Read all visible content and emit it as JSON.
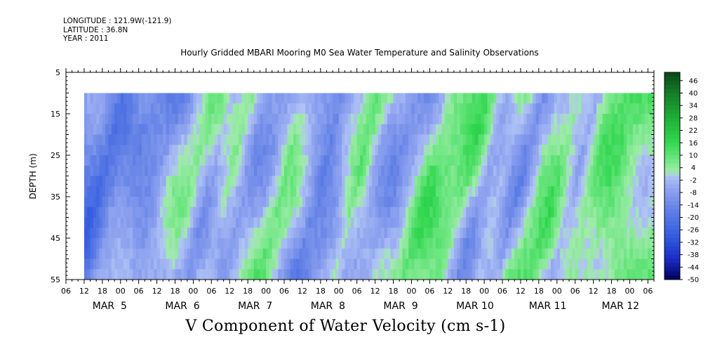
{
  "meta": {
    "longitude": "LONGITUDE : 121.9W(-121.9)",
    "latitude": "LATITUDE : 36.8N",
    "year": "YEAR : 2011"
  },
  "chart_data": {
    "type": "heatmap",
    "title": "Hourly Gridded MBARI Mooring M0 Sea Water Temperature and Salinity Observations",
    "variable_label": "V Component of Water Velocity (cm s-1)",
    "ylabel": "DEPTH (m)",
    "ylim": [
      5,
      55
    ],
    "y_inverted": true,
    "y_ticks": [
      5,
      15,
      25,
      35,
      45,
      55
    ],
    "x_start": "2011-03-04T06:00",
    "x_end": "2011-03-12T08:00",
    "x_hour_ticks": [
      "06",
      "12",
      "18",
      "00",
      "06",
      "12",
      "18",
      "00",
      "06",
      "12",
      "18",
      "00",
      "06",
      "12",
      "18",
      "00",
      "06",
      "12",
      "18",
      "00",
      "06",
      "12",
      "18",
      "00",
      "06",
      "12",
      "18",
      "00",
      "06",
      "12",
      "18",
      "00",
      "06"
    ],
    "x_day_labels": [
      "MAR  5",
      "MAR  6",
      "MAR  7",
      "MAR  8",
      "MAR  9",
      "MAR 10",
      "MAR 11",
      "MAR 12"
    ],
    "data_start": "2011-03-04T12:00",
    "data_depth_range": [
      10,
      55
    ],
    "colorbar": {
      "labels": [
        "46",
        "40",
        "34",
        "28",
        "22",
        "16",
        "10",
        "4",
        "-2",
        "-8",
        "-14",
        "-20",
        "-26",
        "-32",
        "-38",
        "-44",
        "-50"
      ],
      "min": -50,
      "max": 50
    },
    "series_summary": [
      {
        "time": "2011-03-04T12:00",
        "mean_v": -14
      },
      {
        "time": "2011-03-04T18:00",
        "mean_v": -20
      },
      {
        "time": "2011-03-05T00:00",
        "mean_v": -6
      },
      {
        "time": "2011-03-05T06:00",
        "mean_v": -10
      },
      {
        "time": "2011-03-05T12:00",
        "mean_v": -14
      },
      {
        "time": "2011-03-05T18:00",
        "mean_v": -4
      },
      {
        "time": "2011-03-06T00:00",
        "mean_v": 2
      },
      {
        "time": "2011-03-06T06:00",
        "mean_v": -8
      },
      {
        "time": "2011-03-06T12:00",
        "mean_v": 6
      },
      {
        "time": "2011-03-06T18:00",
        "mean_v": -6
      },
      {
        "time": "2011-03-07T00:00",
        "mean_v": -4
      },
      {
        "time": "2011-03-07T06:00",
        "mean_v": 6
      },
      {
        "time": "2011-03-07T12:00",
        "mean_v": -6
      },
      {
        "time": "2011-03-07T18:00",
        "mean_v": -20
      },
      {
        "time": "2011-03-08T00:00",
        "mean_v": -8
      },
      {
        "time": "2011-03-08T06:00",
        "mean_v": 10
      },
      {
        "time": "2011-03-08T12:00",
        "mean_v": -2
      },
      {
        "time": "2011-03-08T18:00",
        "mean_v": -8
      },
      {
        "time": "2011-03-09T00:00",
        "mean_v": -4
      },
      {
        "time": "2011-03-09T06:00",
        "mean_v": 8
      },
      {
        "time": "2011-03-09T12:00",
        "mean_v": 4
      },
      {
        "time": "2011-03-09T18:00",
        "mean_v": 8
      },
      {
        "time": "2011-03-10T00:00",
        "mean_v": -8
      },
      {
        "time": "2011-03-10T06:00",
        "mean_v": 4
      },
      {
        "time": "2011-03-10T12:00",
        "mean_v": -10
      },
      {
        "time": "2011-03-10T18:00",
        "mean_v": 6
      },
      {
        "time": "2011-03-11T00:00",
        "mean_v": 8
      },
      {
        "time": "2011-03-11T06:00",
        "mean_v": -10
      },
      {
        "time": "2011-03-11T12:00",
        "mean_v": 4
      },
      {
        "time": "2011-03-11T18:00",
        "mean_v": 10
      },
      {
        "time": "2011-03-12T00:00",
        "mean_v": 8
      },
      {
        "time": "2011-03-12T06:00",
        "mean_v": 6
      }
    ]
  }
}
